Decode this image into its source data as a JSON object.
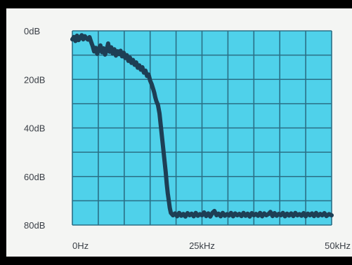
{
  "chart_data": {
    "type": "line",
    "title": "",
    "xlabel": "",
    "ylabel": "",
    "x_unit": "kHz",
    "y_unit": "dB",
    "xlim": [
      0,
      50
    ],
    "ylim": [
      0,
      80
    ],
    "y_inverted": true,
    "grid": true,
    "x_gridlines": 10,
    "y_gridlines": 8,
    "x_tick_labels": [
      {
        "value": 0,
        "label": "0Hz"
      },
      {
        "value": 25,
        "label": "25kHz"
      },
      {
        "value": 50,
        "label": "50kHz"
      }
    ],
    "y_tick_labels": [
      {
        "value": 0,
        "label": "0dB"
      },
      {
        "value": 20,
        "label": "20dB"
      },
      {
        "value": 40,
        "label": "40dB"
      },
      {
        "value": 60,
        "label": "60dB"
      },
      {
        "value": 80,
        "label": "80dB"
      }
    ],
    "series": [
      {
        "values": [
          [
            0.0,
            3.5
          ],
          [
            0.3,
            2.5
          ],
          [
            0.6,
            4.2
          ],
          [
            0.9,
            2.0
          ],
          [
            1.2,
            3.8
          ],
          [
            1.5,
            2.8
          ],
          [
            1.8,
            1.8
          ],
          [
            2.1,
            3.5
          ],
          [
            2.4,
            2.2
          ],
          [
            2.7,
            3.0
          ],
          [
            3.0,
            3.6
          ],
          [
            3.3,
            2.6
          ],
          [
            3.6,
            4.5
          ],
          [
            3.9,
            6.2
          ],
          [
            4.2,
            8.5
          ],
          [
            4.5,
            7.0
          ],
          [
            4.8,
            9.5
          ],
          [
            5.1,
            7.5
          ],
          [
            5.4,
            6.0
          ],
          [
            5.7,
            8.8
          ],
          [
            6.0,
            7.2
          ],
          [
            6.3,
            9.8
          ],
          [
            6.6,
            8.0
          ],
          [
            6.9,
            5.2
          ],
          [
            7.2,
            8.6
          ],
          [
            7.5,
            6.8
          ],
          [
            7.8,
            9.4
          ],
          [
            8.1,
            7.6
          ],
          [
            8.4,
            10.2
          ],
          [
            8.7,
            8.4
          ],
          [
            9.0,
            9.6
          ],
          [
            9.3,
            8.2
          ],
          [
            9.6,
            10.5
          ],
          [
            9.9,
            9.0
          ],
          [
            10.2,
            11.2
          ],
          [
            10.5,
            10.0
          ],
          [
            10.8,
            12.4
          ],
          [
            11.1,
            11.0
          ],
          [
            11.4,
            13.2
          ],
          [
            11.7,
            12.0
          ],
          [
            12.0,
            14.0
          ],
          [
            12.3,
            13.0
          ],
          [
            12.6,
            15.2
          ],
          [
            12.9,
            14.2
          ],
          [
            13.2,
            16.0
          ],
          [
            13.5,
            15.0
          ],
          [
            13.8,
            17.2
          ],
          [
            14.1,
            16.4
          ],
          [
            14.4,
            18.6
          ],
          [
            14.7,
            18.0
          ],
          [
            15.0,
            20.5
          ],
          [
            15.3,
            22.0
          ],
          [
            15.6,
            24.0
          ],
          [
            15.8,
            25.5
          ],
          [
            16.0,
            27.5
          ],
          [
            16.2,
            29.0
          ],
          [
            16.5,
            30.5
          ],
          [
            16.8,
            34.0
          ],
          [
            17.1,
            40.0
          ],
          [
            17.4,
            46.0
          ],
          [
            17.7,
            52.0
          ],
          [
            18.0,
            58.0
          ],
          [
            18.2,
            63.0
          ],
          [
            18.4,
            67.0
          ],
          [
            18.6,
            70.0
          ],
          [
            18.8,
            73.0
          ],
          [
            19.0,
            75.0
          ],
          [
            19.4,
            76.0
          ],
          [
            19.8,
            75.2
          ],
          [
            20.2,
            76.4
          ],
          [
            20.6,
            75.0
          ],
          [
            21.0,
            76.2
          ],
          [
            21.4,
            75.4
          ],
          [
            21.8,
            76.5
          ],
          [
            22.2,
            75.1
          ],
          [
            22.6,
            76.0
          ],
          [
            23.0,
            75.3
          ],
          [
            23.4,
            76.4
          ],
          [
            23.8,
            75.0
          ],
          [
            24.2,
            76.2
          ],
          [
            24.6,
            75.5
          ],
          [
            25.0,
            76.0
          ],
          [
            25.4,
            74.8
          ],
          [
            25.8,
            76.3
          ],
          [
            26.2,
            75.2
          ],
          [
            26.6,
            76.5
          ],
          [
            27.0,
            75.0
          ],
          [
            27.4,
            74.2
          ],
          [
            27.8,
            76.0
          ],
          [
            28.2,
            75.3
          ],
          [
            28.6,
            76.4
          ],
          [
            29.0,
            75.0
          ],
          [
            29.4,
            76.2
          ],
          [
            29.8,
            75.5
          ],
          [
            30.2,
            76.1
          ],
          [
            30.6,
            75.0
          ],
          [
            31.0,
            76.4
          ],
          [
            31.4,
            75.2
          ],
          [
            31.8,
            76.0
          ],
          [
            32.2,
            75.4
          ],
          [
            32.6,
            76.3
          ],
          [
            33.0,
            75.0
          ],
          [
            33.4,
            76.2
          ],
          [
            33.8,
            75.3
          ],
          [
            34.2,
            76.5
          ],
          [
            34.6,
            75.1
          ],
          [
            35.0,
            76.0
          ],
          [
            35.4,
            75.4
          ],
          [
            35.8,
            76.2
          ],
          [
            36.2,
            75.0
          ],
          [
            36.6,
            76.4
          ],
          [
            37.0,
            75.2
          ],
          [
            37.4,
            76.0
          ],
          [
            37.8,
            75.5
          ],
          [
            38.2,
            74.6
          ],
          [
            38.6,
            76.3
          ],
          [
            39.0,
            75.1
          ],
          [
            39.4,
            76.2
          ],
          [
            39.8,
            75.4
          ],
          [
            40.2,
            76.0
          ],
          [
            40.6,
            75.0
          ],
          [
            41.0,
            76.4
          ],
          [
            41.4,
            75.3
          ],
          [
            41.8,
            76.1
          ],
          [
            42.2,
            75.2
          ],
          [
            42.6,
            76.3
          ],
          [
            43.0,
            75.0
          ],
          [
            43.4,
            76.0
          ],
          [
            43.8,
            75.5
          ],
          [
            44.2,
            76.2
          ],
          [
            44.6,
            75.1
          ],
          [
            45.0,
            76.4
          ],
          [
            45.4,
            75.3
          ],
          [
            45.8,
            76.0
          ],
          [
            46.2,
            75.2
          ],
          [
            46.6,
            76.3
          ],
          [
            47.0,
            75.0
          ],
          [
            47.4,
            76.2
          ],
          [
            47.8,
            75.4
          ],
          [
            48.2,
            76.0
          ],
          [
            48.6,
            75.1
          ],
          [
            49.0,
            76.3
          ],
          [
            49.5,
            75.5
          ],
          [
            50.0,
            76.0
          ]
        ]
      }
    ]
  },
  "colors": {
    "plot_background": "#4fd1ea",
    "grid": "#2a6f86",
    "trace": "#1e3f55",
    "panel": "#f4f5f3",
    "frame": "#000000",
    "tick_text": "#3a3f46"
  }
}
